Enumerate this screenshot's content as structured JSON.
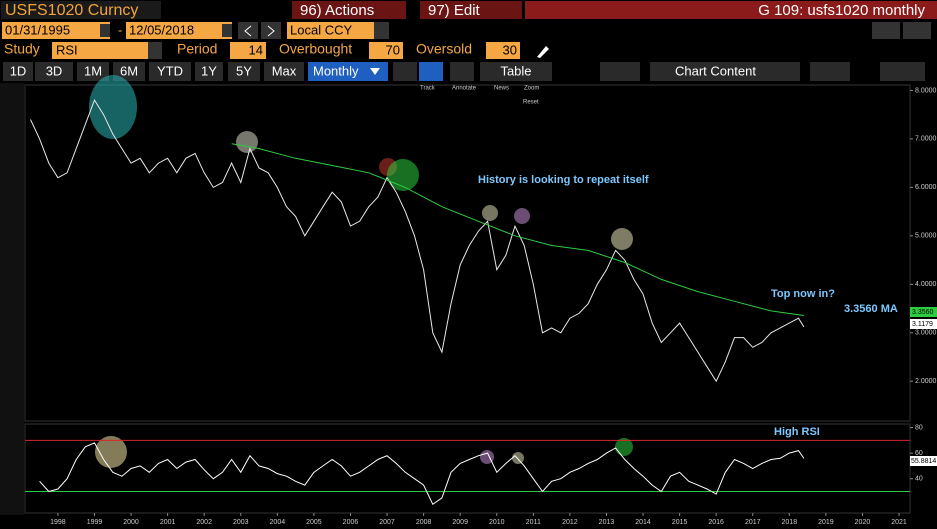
{
  "header": {
    "ticker": "USFS1020 Curncy",
    "actions": "96) Actions",
    "edit": "97) Edit",
    "title": "G 109: usfs1020 monthly"
  },
  "controls": {
    "start_date": "01/31/1995",
    "date_separator": "-",
    "end_date": "12/05/2018",
    "currency": "Local CCY",
    "study_label": "Study",
    "study": "RSI",
    "period_label": "Period",
    "period": 14,
    "overbought_label": "Overbought",
    "overbought": 70,
    "oversold_label": "Oversold",
    "oversold": 30
  },
  "toolbar": {
    "ranges": [
      "1D",
      "3D",
      "1M",
      "6M",
      "YTD",
      "1Y",
      "5Y",
      "Max"
    ],
    "frequency": "Monthly",
    "table": "Table",
    "chart_content": "Chart Content"
  },
  "chart_tools": [
    "Track",
    "Annotate",
    "News",
    "Zoom",
    "Reset"
  ],
  "chart_data": [
    {
      "type": "line",
      "xlim": [
        1997.6,
        2021.8
      ],
      "xticks": [
        {
          "value": 1998.5,
          "label": "1998"
        },
        {
          "value": 1999.5,
          "label": "1999"
        },
        {
          "value": 2000.5,
          "label": "2000"
        },
        {
          "value": 2001.5,
          "label": "2001"
        },
        {
          "value": 2002.5,
          "label": "2002"
        },
        {
          "value": 2003.5,
          "label": "2003"
        },
        {
          "value": 2004.5,
          "label": "2004"
        },
        {
          "value": 2005.5,
          "label": "2005"
        },
        {
          "value": 2006.5,
          "label": "2006"
        },
        {
          "value": 2007.5,
          "label": "2007"
        },
        {
          "value": 2008.5,
          "label": "2008"
        },
        {
          "value": 2009.5,
          "label": "2009"
        },
        {
          "value": 2010.5,
          "label": "2010"
        },
        {
          "value": 2011.5,
          "label": "2011"
        },
        {
          "value": 2012.5,
          "label": "2012"
        },
        {
          "value": 2013.5,
          "label": "2013"
        },
        {
          "value": 2014.5,
          "label": "2014"
        },
        {
          "value": 2015.5,
          "label": "2015"
        },
        {
          "value": 2016.5,
          "label": "2016"
        },
        {
          "value": 2017.5,
          "label": "2017"
        },
        {
          "value": 2018.5,
          "label": "2018"
        },
        {
          "value": 2019.5,
          "label": "2019"
        },
        {
          "value": 2020.5,
          "label": "2020"
        },
        {
          "value": 2021.5,
          "label": "2021"
        }
      ],
      "ylim": [
        1.2,
        8.05
      ],
      "yticks": [
        {
          "value": 8,
          "label": "8.0000"
        },
        {
          "value": 7,
          "label": "7.0000"
        },
        {
          "value": 6,
          "label": "6.0000"
        },
        {
          "value": 5,
          "label": "5.0000"
        },
        {
          "value": 4,
          "label": "4.0000"
        },
        {
          "value": 3,
          "label": "3.0000"
        },
        {
          "value": 2,
          "label": "2.0000"
        }
      ],
      "series": [
        {
          "color": "#e8e8e8",
          "x": [
            1997.75,
            1998,
            1998.25,
            1998.5,
            1998.75,
            1999,
            1999.25,
            1999.5,
            1999.75,
            2000,
            2000.25,
            2000.5,
            2000.75,
            2001,
            2001.25,
            2001.5,
            2001.75,
            2002,
            2002.25,
            2002.5,
            2002.75,
            2003,
            2003.25,
            2003.5,
            2003.75,
            2004,
            2004.25,
            2004.5,
            2004.75,
            2005,
            2005.25,
            2005.5,
            2005.75,
            2006,
            2006.25,
            2006.5,
            2006.75,
            2007,
            2007.25,
            2007.5,
            2007.75,
            2008,
            2008.25,
            2008.5,
            2008.75,
            2009,
            2009.25,
            2009.5,
            2009.75,
            2010,
            2010.25,
            2010.5,
            2010.75,
            2011,
            2011.25,
            2011.5,
            2011.75,
            2012,
            2012.25,
            2012.5,
            2012.75,
            2013,
            2013.25,
            2013.5,
            2013.75,
            2014,
            2014.25,
            2014.5,
            2014.75,
            2015,
            2015.25,
            2015.5,
            2015.75,
            2016,
            2016.25,
            2016.5,
            2016.75,
            2017,
            2017.25,
            2017.5,
            2017.75,
            2018,
            2018.25,
            2018.5,
            2018.75,
            2018.9
          ],
          "values": [
            7.4,
            7.0,
            6.5,
            6.2,
            6.3,
            6.8,
            7.3,
            7.8,
            7.5,
            7.1,
            6.8,
            6.5,
            6.6,
            6.3,
            6.5,
            6.6,
            6.3,
            6.6,
            6.7,
            6.3,
            6.0,
            6.1,
            6.5,
            6.1,
            6.8,
            6.4,
            6.3,
            6.0,
            5.6,
            5.4,
            5.0,
            5.3,
            5.6,
            5.9,
            5.7,
            5.2,
            5.3,
            5.6,
            5.8,
            6.2,
            5.9,
            5.5,
            5.0,
            4.3,
            3.0,
            2.6,
            3.6,
            4.4,
            4.8,
            5.1,
            5.3,
            4.3,
            4.6,
            5.2,
            4.8,
            4.0,
            3.0,
            3.1,
            3.0,
            3.3,
            3.4,
            3.6,
            4.0,
            4.3,
            4.7,
            4.5,
            4.1,
            3.8,
            3.2,
            2.8,
            3.0,
            3.2,
            2.9,
            2.6,
            2.3,
            2.0,
            2.4,
            2.9,
            2.9,
            2.7,
            2.8,
            3.0,
            3.1,
            3.2,
            3.3,
            3.1179
          ]
        },
        {
          "color": "#2ecc40",
          "x": [
            2003.25,
            2004,
            2005,
            2006,
            2007,
            2008,
            2009,
            2010,
            2011,
            2012,
            2013,
            2014,
            2015,
            2016,
            2017,
            2018,
            2018.9
          ],
          "values": [
            6.9,
            6.8,
            6.6,
            6.45,
            6.3,
            6.0,
            5.6,
            5.3,
            5.0,
            4.8,
            4.7,
            4.45,
            4.1,
            3.85,
            3.65,
            3.45,
            3.356
          ]
        }
      ],
      "annotations": [
        "History is looking to repeat itself",
        "Top now in?",
        "3.3560 MA"
      ],
      "last_value_labels": [
        "3.3560",
        "3.1179"
      ]
    },
    {
      "type": "line",
      "ylim": [
        14,
        82
      ],
      "yticks": [
        80,
        60,
        40
      ],
      "series": [
        {
          "color": "#ffffff",
          "x": [
            1998,
            1998.25,
            1998.5,
            1998.75,
            1999,
            1999.25,
            1999.5,
            1999.75,
            2000,
            2000.25,
            2000.5,
            2000.75,
            2001,
            2001.25,
            2001.5,
            2001.75,
            2002,
            2002.25,
            2002.5,
            2002.75,
            2003,
            2003.25,
            2003.5,
            2003.75,
            2004,
            2004.25,
            2004.5,
            2004.75,
            2005,
            2005.25,
            2005.5,
            2005.75,
            2006,
            2006.25,
            2006.5,
            2006.75,
            2007,
            2007.25,
            2007.5,
            2007.75,
            2008,
            2008.25,
            2008.5,
            2008.75,
            2009,
            2009.25,
            2009.5,
            2009.75,
            2010,
            2010.25,
            2010.5,
            2010.75,
            2011,
            2011.25,
            2011.5,
            2011.75,
            2012,
            2012.25,
            2012.5,
            2012.75,
            2013,
            2013.25,
            2013.5,
            2013.75,
            2014,
            2014.25,
            2014.5,
            2014.75,
            2015,
            2015.25,
            2015.5,
            2015.75,
            2016,
            2016.25,
            2016.5,
            2016.75,
            2017,
            2017.25,
            2017.5,
            2017.75,
            2018,
            2018.25,
            2018.5,
            2018.75,
            2018.9
          ],
          "values": [
            38,
            30,
            32,
            40,
            55,
            65,
            68,
            55,
            45,
            42,
            48,
            50,
            45,
            52,
            55,
            48,
            53,
            55,
            47,
            40,
            45,
            55,
            45,
            58,
            50,
            48,
            44,
            42,
            38,
            35,
            45,
            50,
            55,
            50,
            42,
            45,
            50,
            55,
            58,
            52,
            45,
            40,
            35,
            20,
            25,
            45,
            52,
            55,
            58,
            60,
            45,
            52,
            58,
            50,
            40,
            30,
            38,
            40,
            45,
            48,
            52,
            55,
            60,
            64,
            55,
            48,
            42,
            35,
            30,
            42,
            45,
            38,
            35,
            32,
            28,
            45,
            55,
            52,
            48,
            52,
            55,
            56,
            60,
            62,
            55.8814
          ]
        }
      ],
      "annotations": [
        "High RSI"
      ],
      "last_value_labels": [
        "55.8814"
      ]
    }
  ]
}
